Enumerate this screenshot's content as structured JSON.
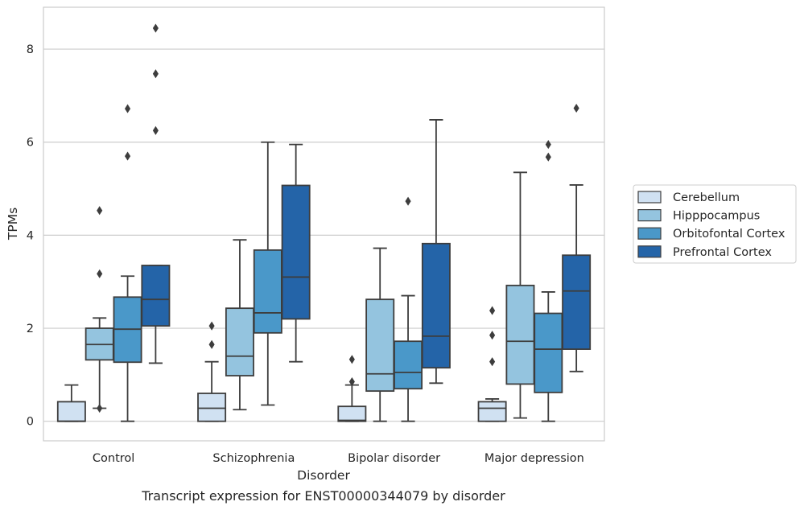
{
  "chart_data": {
    "type": "box",
    "xlabel": "Disorder",
    "ylabel": "TPMs",
    "caption": "Transcript expression for ENST00000344079 by disorder",
    "categories": [
      "Control",
      "Schizophrenia",
      "Bipolar disorder",
      "Major depression"
    ],
    "yticks": [
      0,
      2,
      4,
      6,
      8
    ],
    "ylim": [
      -0.42,
      8.9
    ],
    "grid": true,
    "legend_position": "right",
    "series": [
      {
        "name": "Cerebellum",
        "color": "#d0e1f2",
        "boxes": [
          {
            "whislo": 0.0,
            "q1": 0.0,
            "med": 0.0,
            "q3": 0.42,
            "whishi": 0.78,
            "fliers": []
          },
          {
            "whislo": 0.0,
            "q1": 0.0,
            "med": 0.28,
            "q3": 0.6,
            "whishi": 1.28,
            "fliers": [
              1.65,
              2.05
            ]
          },
          {
            "whislo": 0.0,
            "q1": 0.0,
            "med": 0.02,
            "q3": 0.32,
            "whishi": 0.78,
            "fliers": [
              0.85,
              1.33
            ]
          },
          {
            "whislo": 0.0,
            "q1": 0.0,
            "med": 0.28,
            "q3": 0.42,
            "whishi": 0.48,
            "fliers": [
              1.28,
              1.85,
              2.38
            ]
          }
        ]
      },
      {
        "name": "Hipppocampus",
        "color": "#94c4df",
        "boxes": [
          {
            "whislo": 0.28,
            "q1": 1.32,
            "med": 1.65,
            "q3": 2.0,
            "whishi": 2.22,
            "fliers": [
              0.28,
              3.17,
              4.53
            ]
          },
          {
            "whislo": 0.25,
            "q1": 0.98,
            "med": 1.4,
            "q3": 2.43,
            "whishi": 3.9,
            "fliers": []
          },
          {
            "whislo": 0.0,
            "q1": 0.65,
            "med": 1.02,
            "q3": 2.62,
            "whishi": 3.72,
            "fliers": []
          },
          {
            "whislo": 0.07,
            "q1": 0.8,
            "med": 1.72,
            "q3": 2.92,
            "whishi": 5.35,
            "fliers": []
          }
        ]
      },
      {
        "name": "Orbitofontal Cortex",
        "color": "#4a98c9",
        "boxes": [
          {
            "whislo": 0.0,
            "q1": 1.27,
            "med": 1.98,
            "q3": 2.67,
            "whishi": 3.12,
            "fliers": [
              5.7,
              6.72
            ]
          },
          {
            "whislo": 0.35,
            "q1": 1.9,
            "med": 2.33,
            "q3": 3.68,
            "whishi": 6.0,
            "fliers": []
          },
          {
            "whislo": 0.0,
            "q1": 0.7,
            "med": 1.05,
            "q3": 1.72,
            "whishi": 2.7,
            "fliers": [
              4.73
            ]
          },
          {
            "whislo": 0.0,
            "q1": 0.62,
            "med": 1.55,
            "q3": 2.32,
            "whishi": 2.78,
            "fliers": [
              5.68,
              5.95
            ]
          }
        ]
      },
      {
        "name": "Prefrontal Cortex",
        "color": "#2464a8",
        "boxes": [
          {
            "whislo": 1.25,
            "q1": 2.05,
            "med": 2.62,
            "q3": 3.35,
            "whishi": 3.35,
            "fliers": [
              6.25,
              7.47,
              8.45
            ]
          },
          {
            "whislo": 1.28,
            "q1": 2.2,
            "med": 3.1,
            "q3": 5.07,
            "whishi": 5.95,
            "fliers": []
          },
          {
            "whislo": 0.82,
            "q1": 1.15,
            "med": 1.83,
            "q3": 3.82,
            "whishi": 6.48,
            "fliers": []
          },
          {
            "whislo": 1.07,
            "q1": 1.55,
            "med": 2.8,
            "q3": 3.57,
            "whishi": 5.08,
            "fliers": [
              6.73
            ]
          }
        ]
      }
    ]
  }
}
